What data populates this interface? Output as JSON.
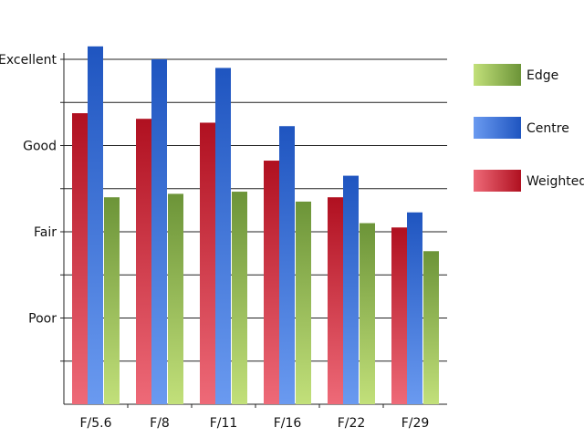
{
  "chart_data": {
    "type": "bar",
    "title": "",
    "xlabel": "",
    "ylabel": "",
    "categories": [
      "F/5.6",
      "F/8",
      "F/11",
      "F/16",
      "F/22",
      "F/29"
    ],
    "y_ticks": [
      {
        "label": "Poor",
        "value": 2
      },
      {
        "label": "Fair",
        "value": 4
      },
      {
        "label": "Good",
        "value": 6
      },
      {
        "label": "Excellent",
        "value": 8
      }
    ],
    "ylim": [
      0,
      8.5
    ],
    "grid": true,
    "legend_position": "right",
    "series": [
      {
        "name": "Weighted",
        "values": [
          6.75,
          6.62,
          6.53,
          5.65,
          4.8,
          4.1
        ],
        "color_light": "#ee6a78",
        "color_dark": "#b01020"
      },
      {
        "name": "Centre",
        "values": [
          8.3,
          8.0,
          7.8,
          6.45,
          5.3,
          4.45
        ],
        "color_light": "#6a9af0",
        "color_dark": "#1f55c0"
      },
      {
        "name": "Edge",
        "values": [
          4.8,
          4.88,
          4.93,
          4.7,
          4.2,
          3.55
        ],
        "color_light": "#c2e07a",
        "color_dark": "#6c9438"
      }
    ],
    "legend_order": [
      "Edge",
      "Centre",
      "Weighted"
    ]
  }
}
